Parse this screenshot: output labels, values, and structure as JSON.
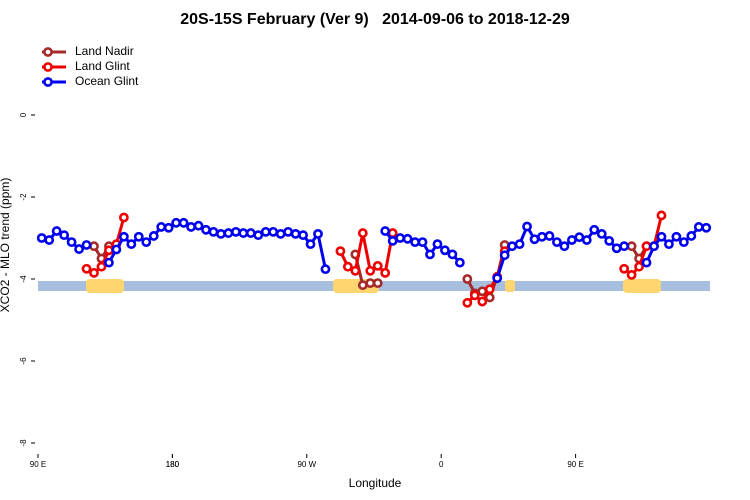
{
  "chart_data": {
    "type": "line",
    "title": "20S-15S February (Ver 9)   2014-09-06 to 2018-12-29",
    "xlabel": "Longitude",
    "ylabel": "XCO2 - MLO trend (ppm)",
    "xlim": [
      90,
      540
    ],
    "ylim": [
      -8.2,
      1.9
    ],
    "xticks": [
      {
        "value": 90,
        "label": "90 E"
      },
      180,
      {
        "value": 270,
        "label": "90 W"
      },
      {
        "value": 360,
        "label": "0"
      },
      {
        "value": 450,
        "label": "90 E"
      },
      180.0000001
    ],
    "yticks": [
      0,
      -2,
      -4,
      -6,
      -8
    ],
    "legend": "top-left",
    "series": [
      {
        "name": "Land Nadir",
        "color": "#a52a2a",
        "x": [
          127.5,
          132.5,
          137.5,
          142.5,
          302.5,
          307.5,
          312.5,
          317.5,
          322.5,
          377.5,
          382.5,
          387.5,
          392.5,
          397.5,
          402.5,
          407.5,
          487.5,
          492.5,
          497.5
        ],
        "values": [
          -3.2,
          -3.5,
          -3.2,
          null,
          -3.4,
          -4.15,
          -4.1,
          -4.1,
          null,
          -4.0,
          -4.35,
          -4.3,
          -4.45,
          -3.95,
          -3.17,
          null,
          -3.2,
          -3.5,
          -3.2
        ]
      },
      {
        "name": "Land Glint",
        "color": "#ee0000",
        "x": [
          122.5,
          127.5,
          132.5,
          137.5,
          142.5,
          147.5,
          152.5,
          292.5,
          297.5,
          302.5,
          307.5,
          312.5,
          317.5,
          322.5,
          327.5,
          332.5,
          377.5,
          382.5,
          387.5,
          392.5,
          397.5,
          402.5,
          407.5,
          482.5,
          487.5,
          492.5,
          497.5,
          502.5,
          507.5
        ],
        "values": [
          -3.75,
          -3.85,
          -3.7,
          -3.3,
          -3.15,
          -2.5,
          null,
          -3.32,
          -3.7,
          -3.8,
          -2.88,
          -3.8,
          -3.68,
          -3.85,
          -2.88,
          null,
          -4.58,
          -4.4,
          -4.55,
          -4.25,
          -3.95,
          -3.32,
          null,
          -3.75,
          -3.9,
          -3.7,
          -3.2,
          -3.2,
          -2.45
        ]
      },
      {
        "name": "Ocean Glint",
        "color": "#0000ee",
        "x": [
          92.5,
          97.5,
          102.5,
          107.5,
          112.5,
          117.5,
          122.5,
          127.5,
          137.5,
          142.5,
          147.5,
          152.5,
          157.5,
          162.5,
          167.5,
          172.5,
          177.5,
          182.5,
          187.5,
          192.5,
          197.5,
          202.5,
          207.5,
          212.5,
          217.5,
          222.5,
          227.5,
          232.5,
          237.5,
          242.5,
          247.5,
          252.5,
          257.5,
          262.5,
          267.5,
          272.5,
          277.5,
          282.5,
          287.5,
          322.5,
          327.5,
          332.5,
          337.5,
          342.5,
          347.5,
          352.5,
          357.5,
          362.5,
          367.5,
          372.5,
          377.5,
          397.5,
          402.5,
          407.5,
          412.5,
          417.5,
          422.5,
          427.5,
          432.5,
          437.5,
          442.5,
          447.5,
          452.5,
          457.5,
          462.5,
          467.5,
          472.5,
          477.5,
          482.5,
          487.5,
          497.5,
          502.5,
          507.5,
          512.5,
          517.5,
          522.5,
          527.5,
          532.5,
          537.5
        ],
        "values": [
          -3.0,
          -3.05,
          -2.83,
          -2.93,
          -3.1,
          -3.27,
          -3.17,
          null,
          -3.6,
          -3.28,
          -2.97,
          -3.15,
          -2.97,
          -3.1,
          -2.95,
          -2.73,
          -2.75,
          -2.63,
          -2.63,
          -2.73,
          -2.7,
          -2.8,
          -2.85,
          -2.9,
          -2.88,
          -2.85,
          -2.88,
          -2.88,
          -2.93,
          -2.85,
          -2.85,
          -2.9,
          -2.85,
          -2.9,
          -2.93,
          -3.15,
          -2.9,
          -3.76,
          null,
          -2.83,
          -3.07,
          -3.0,
          -3.02,
          -3.1,
          -3.1,
          -3.4,
          -3.15,
          -3.3,
          -3.4,
          -3.6,
          null,
          -3.98,
          -3.42,
          -3.2,
          -3.15,
          -2.72,
          -3.03,
          -2.97,
          -2.95,
          -3.1,
          -3.2,
          -3.05,
          -2.98,
          -3.05,
          -2.8,
          -2.9,
          -3.07,
          -3.25,
          -3.2,
          null,
          -3.6,
          -3.2,
          -2.97,
          -3.15,
          -2.97,
          -3.1,
          -2.95,
          -2.73,
          -2.75
        ]
      }
    ]
  }
}
